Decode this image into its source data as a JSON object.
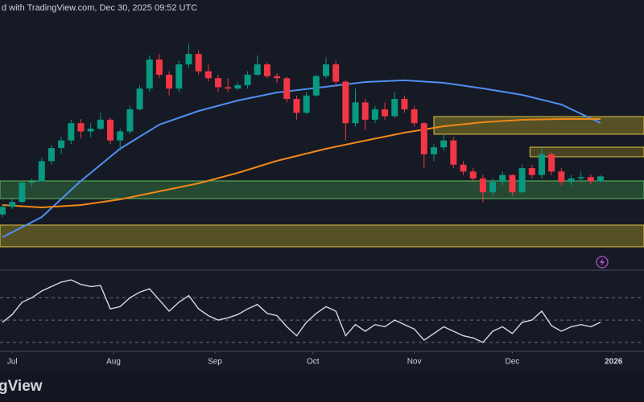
{
  "header": {
    "caption": "d with TradingView.com, Dec 30, 2025 09:52 UTC"
  },
  "footer": {
    "logo": "gView"
  },
  "chart_data": {
    "type": "candlestick",
    "xlim": [
      -0.25,
      65.43
    ],
    "ylim": [
      1686,
      5581
    ],
    "xticks": [
      {
        "value": 1,
        "label": "Jul"
      },
      {
        "value": 11.33,
        "label": "Aug"
      },
      {
        "value": 21.67,
        "label": "Sep"
      },
      {
        "value": 31.67,
        "label": "Oct"
      },
      {
        "value": 42,
        "label": "Nov"
      },
      {
        "value": 52,
        "label": "Dec"
      },
      {
        "value": 62.33,
        "label": "2026"
      }
    ],
    "up_color": "#089981",
    "down_color": "#f23645",
    "candles": [
      [
        2480,
        2620,
        2440,
        2590
      ],
      [
        2590,
        2700,
        2560,
        2660
      ],
      [
        2660,
        2960,
        2640,
        2940
      ],
      [
        2940,
        3000,
        2880,
        2960
      ],
      [
        2960,
        3300,
        2950,
        3250
      ],
      [
        3250,
        3480,
        3200,
        3440
      ],
      [
        3440,
        3600,
        3350,
        3550
      ],
      [
        3550,
        3850,
        3500,
        3800
      ],
      [
        3800,
        3860,
        3580,
        3680
      ],
      [
        3680,
        3800,
        3600,
        3720
      ],
      [
        3720,
        3950,
        3700,
        3850
      ],
      [
        3850,
        3880,
        3500,
        3550
      ],
      [
        3550,
        3720,
        3400,
        3680
      ],
      [
        3680,
        4050,
        3640,
        4000
      ],
      [
        4000,
        4350,
        3980,
        4300
      ],
      [
        4300,
        4780,
        4250,
        4720
      ],
      [
        4720,
        4800,
        4450,
        4500
      ],
      [
        4500,
        4550,
        4200,
        4300
      ],
      [
        4300,
        4700,
        4250,
        4650
      ],
      [
        4650,
        4950,
        4600,
        4800
      ],
      [
        4800,
        4850,
        4500,
        4550
      ],
      [
        4550,
        4650,
        4400,
        4450
      ],
      [
        4450,
        4500,
        4250,
        4320
      ],
      [
        4320,
        4450,
        4250,
        4300
      ],
      [
        4300,
        4400,
        4280,
        4350
      ],
      [
        4350,
        4550,
        4300,
        4500
      ],
      [
        4500,
        4780,
        4480,
        4650
      ],
      [
        4650,
        4680,
        4450,
        4480
      ],
      [
        4480,
        4520,
        4380,
        4450
      ],
      [
        4450,
        4470,
        4100,
        4150
      ],
      [
        4150,
        4200,
        3850,
        3950
      ],
      [
        3950,
        4250,
        3930,
        4200
      ],
      [
        4200,
        4500,
        4180,
        4480
      ],
      [
        4480,
        4750,
        4450,
        4650
      ],
      [
        4650,
        4700,
        4350,
        4400
      ],
      [
        4400,
        4420,
        3550,
        3800
      ],
      [
        3800,
        4300,
        3750,
        4100
      ],
      [
        4100,
        4150,
        3700,
        3850
      ],
      [
        3850,
        4050,
        3800,
        4000
      ],
      [
        4000,
        4100,
        3850,
        3900
      ],
      [
        3900,
        4250,
        3880,
        4150
      ],
      [
        4150,
        4200,
        3950,
        4000
      ],
      [
        4000,
        4050,
        3750,
        3800
      ],
      [
        3800,
        3820,
        3150,
        3350
      ],
      [
        3350,
        3500,
        3250,
        3450
      ],
      [
        3450,
        3650,
        3400,
        3550
      ],
      [
        3550,
        3600,
        3150,
        3200
      ],
      [
        3200,
        3250,
        3050,
        3100
      ],
      [
        3100,
        3150,
        2950,
        3000
      ],
      [
        3000,
        3050,
        2650,
        2800
      ],
      [
        2800,
        3000,
        2750,
        2950
      ],
      [
        2950,
        3100,
        2900,
        3050
      ],
      [
        3050,
        3060,
        2750,
        2800
      ],
      [
        2800,
        3200,
        2780,
        3150
      ],
      [
        3150,
        3200,
        3000,
        3050
      ],
      [
        3050,
        3450,
        3000,
        3350
      ],
      [
        3350,
        3380,
        3050,
        3100
      ],
      [
        3100,
        3150,
        2900,
        2950
      ],
      [
        2950,
        3050,
        2900,
        3000
      ],
      [
        3000,
        3100,
        2950,
        3020
      ],
      [
        3020,
        3060,
        2920,
        2960
      ],
      [
        2960,
        3050,
        2940,
        3030
      ]
    ],
    "lines": [
      {
        "color": "#4f8ff0",
        "x": [
          0,
          4,
          8,
          12,
          16,
          20,
          24,
          28,
          33,
          37,
          41,
          45,
          49,
          53,
          57,
          61
        ],
        "values": [
          2150,
          2442,
          2965,
          3430,
          3779,
          3977,
          4128,
          4244,
          4326,
          4395,
          4419,
          4384,
          4302,
          4209,
          4070,
          3802
        ]
      },
      {
        "color": "#f0881a",
        "x": [
          0,
          4,
          8,
          12,
          16,
          20,
          24,
          28,
          33,
          37,
          41,
          45,
          49,
          53,
          57,
          61
        ],
        "values": [
          2616,
          2581,
          2616,
          2698,
          2814,
          2930,
          3081,
          3256,
          3430,
          3547,
          3663,
          3756,
          3814,
          3849,
          3860,
          3860
        ]
      }
    ],
    "zones": [
      {
        "start": -0.25,
        "low": 2709,
        "high": 2965,
        "fill": "rgba(76,175,80,0.32)",
        "stroke": "#5fbf62"
      },
      {
        "start": -0.25,
        "low": 2012,
        "high": 2326,
        "fill": "rgba(190,170,40,0.38)",
        "stroke": "#e0c341"
      },
      {
        "start": 44,
        "low": 3640,
        "high": 3895,
        "fill": "rgba(190,170,40,0.38)",
        "stroke": "#e0c341"
      },
      {
        "start": 53.8,
        "low": 3314,
        "high": 3453,
        "fill": "rgba(190,170,40,0.3)",
        "stroke": "#e0c341"
      }
    ],
    "rsi": {
      "ylim": [
        22,
        94
      ],
      "levels": [
        30,
        50,
        70
      ],
      "color": "#d5d7ec",
      "values": [
        48,
        55,
        66,
        70,
        76,
        80,
        84,
        86,
        82,
        80,
        81,
        60,
        62,
        70,
        75,
        78,
        68,
        58,
        66,
        72,
        60,
        54,
        50,
        52,
        55,
        60,
        64,
        56,
        54,
        44,
        36,
        48,
        56,
        62,
        58,
        36,
        46,
        40,
        46,
        44,
        50,
        46,
        42,
        32,
        38,
        44,
        40,
        36,
        34,
        30,
        40,
        44,
        38,
        48,
        50,
        58,
        45,
        40,
        44,
        46,
        44,
        48
      ]
    }
  }
}
